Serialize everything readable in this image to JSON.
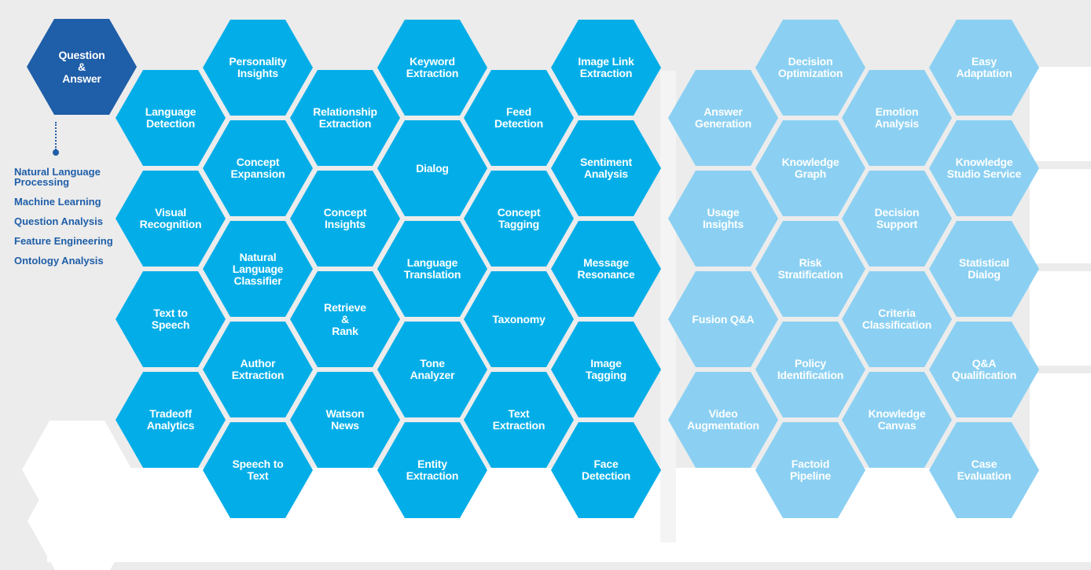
{
  "featured": {
    "label": "Question\n&\nAnswer",
    "color": "#1f5ea8"
  },
  "legend": [
    "Natural Language\nProcessing",
    "Machine Learning",
    "Question Analysis",
    "Feature Engineering",
    "Ontology Analysis"
  ],
  "colors": {
    "primary": "#03aee8",
    "light": "#8bd0f2",
    "text": "#ffffff",
    "accent": "#1f5ea8",
    "background": "#ececec"
  },
  "hexagons": [
    {
      "label": "Personality\nInsights",
      "tone": "primary"
    },
    {
      "label": "Keyword\nExtraction",
      "tone": "primary"
    },
    {
      "label": "Image Link\nExtraction",
      "tone": "primary"
    },
    {
      "label": "Language\nDetection",
      "tone": "primary"
    },
    {
      "label": "Relationship\nExtraction",
      "tone": "primary"
    },
    {
      "label": "Feed\nDetection",
      "tone": "primary"
    },
    {
      "label": "Concept\nExpansion",
      "tone": "primary"
    },
    {
      "label": "Dialog",
      "tone": "primary"
    },
    {
      "label": "Sentiment\nAnalysis",
      "tone": "primary"
    },
    {
      "label": "Visual\nRecognition",
      "tone": "primary"
    },
    {
      "label": "Concept\nInsights",
      "tone": "primary"
    },
    {
      "label": "Concept\nTagging",
      "tone": "primary"
    },
    {
      "label": "Natural\nLanguage\nClassifier",
      "tone": "primary"
    },
    {
      "label": "Language\nTranslation",
      "tone": "primary"
    },
    {
      "label": "Message\nResonance",
      "tone": "primary"
    },
    {
      "label": "Text to\nSpeech",
      "tone": "primary"
    },
    {
      "label": "Retrieve\n&\nRank",
      "tone": "primary"
    },
    {
      "label": "Taxonomy",
      "tone": "primary"
    },
    {
      "label": "Author\nExtraction",
      "tone": "primary"
    },
    {
      "label": "Tone\nAnalyzer",
      "tone": "primary"
    },
    {
      "label": "Image\nTagging",
      "tone": "primary"
    },
    {
      "label": "Tradeoff\nAnalytics",
      "tone": "primary"
    },
    {
      "label": "Watson\nNews",
      "tone": "primary"
    },
    {
      "label": "Text\nExtraction",
      "tone": "primary"
    },
    {
      "label": "Speech to\nText",
      "tone": "primary"
    },
    {
      "label": "Entity\nExtraction",
      "tone": "primary"
    },
    {
      "label": "Face\nDetection",
      "tone": "primary"
    },
    {
      "label": "Decision\nOptimization",
      "tone": "light"
    },
    {
      "label": "Easy\nAdaptation",
      "tone": "light"
    },
    {
      "label": "Answer\nGeneration",
      "tone": "light"
    },
    {
      "label": "Emotion\nAnalysis",
      "tone": "light"
    },
    {
      "label": "Knowledge\nGraph",
      "tone": "light"
    },
    {
      "label": "Knowledge\nStudio Service",
      "tone": "light"
    },
    {
      "label": "Usage\nInsights",
      "tone": "light"
    },
    {
      "label": "Decision\nSupport",
      "tone": "light"
    },
    {
      "label": "Risk\nStratification",
      "tone": "light"
    },
    {
      "label": "Statistical\nDialog",
      "tone": "light"
    },
    {
      "label": "Fusion Q&A",
      "tone": "light"
    },
    {
      "label": "Criteria\nClassification",
      "tone": "light"
    },
    {
      "label": "Policy\nIdentification",
      "tone": "light"
    },
    {
      "label": "Q&A\nQualification",
      "tone": "light"
    },
    {
      "label": "Video\nAugmentation",
      "tone": "light"
    },
    {
      "label": "Knowledge\nCanvas",
      "tone": "light"
    },
    {
      "label": "Factoid\nPipeline",
      "tone": "light"
    },
    {
      "label": "Case\nEvaluation",
      "tone": "light"
    }
  ]
}
